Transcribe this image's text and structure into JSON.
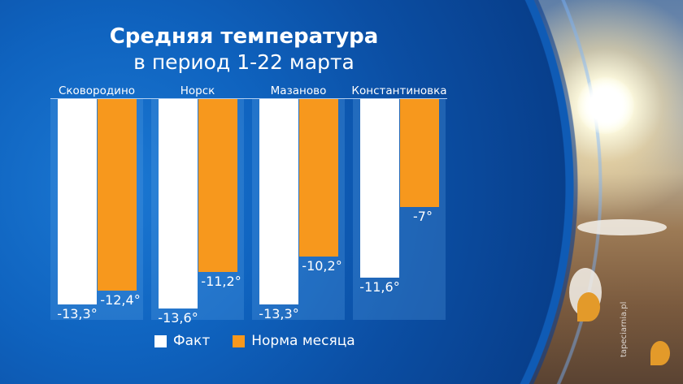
{
  "title": "Средняя температура",
  "subtitle": "в период 1-22 марта",
  "watermark": "tapeciarnia.pl",
  "chart_data": {
    "type": "bar",
    "title": "Средняя температура в период 1-22 марта",
    "categories": [
      "Сковородино",
      "Норск",
      "Мазаново",
      "Константиновка"
    ],
    "series": [
      {
        "name": "Факт",
        "color": "#ffffff",
        "values": [
          -13.3,
          -13.6,
          -13.3,
          -11.6
        ],
        "labels": [
          "-13,3°",
          "-13,6°",
          "-13,3°",
          "-11,6°"
        ]
      },
      {
        "name": "Норма месяца",
        "color": "#f7981d",
        "values": [
          -12.4,
          -11.2,
          -10.2,
          -7
        ],
        "labels": [
          "-12,4°",
          "-11,2°",
          "-10,2°",
          "-7°"
        ]
      }
    ],
    "ylim": [
      -14.3,
      0
    ],
    "legend": "bottom"
  }
}
